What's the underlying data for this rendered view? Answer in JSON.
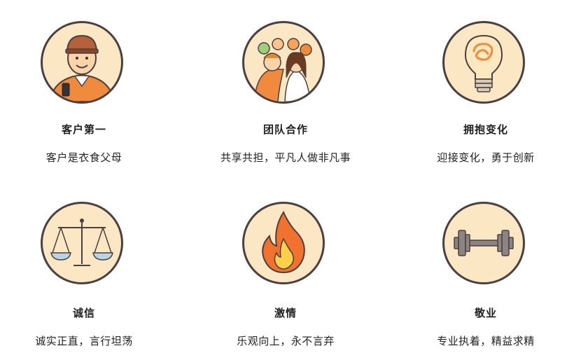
{
  "values": [
    {
      "title": "客户第一",
      "desc": "客户是衣食父母",
      "icon": "customer-icon"
    },
    {
      "title": "团队合作",
      "desc": "共享共担，平凡人做非凡事",
      "icon": "team-icon"
    },
    {
      "title": "拥抱变化",
      "desc": "迎接变化，勇于创新",
      "icon": "lightbulb-icon"
    },
    {
      "title": "诚信",
      "desc": "诚实正直，言行坦荡",
      "icon": "scale-icon"
    },
    {
      "title": "激情",
      "desc": "乐观向上，永不言弃",
      "icon": "flame-icon"
    },
    {
      "title": "敬业",
      "desc": "专业执着，精益求精",
      "icon": "dumbbell-icon"
    }
  ],
  "colors": {
    "circle_fill": "#fbe7c3",
    "circle_border": "#4a4040",
    "accent_orange": "#f08a3c"
  }
}
